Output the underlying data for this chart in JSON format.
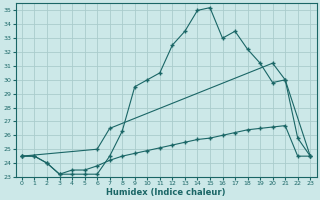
{
  "xlabel": "Humidex (Indice chaleur)",
  "background_color": "#cce8e8",
  "grid_color": "#aacccc",
  "line_color": "#1a6666",
  "xlim": [
    -0.5,
    23.5
  ],
  "ylim": [
    23,
    35.5
  ],
  "xticks": [
    0,
    1,
    2,
    3,
    4,
    5,
    6,
    7,
    8,
    9,
    10,
    11,
    12,
    13,
    14,
    15,
    16,
    17,
    18,
    19,
    20,
    21,
    22,
    23
  ],
  "yticks": [
    23,
    24,
    25,
    26,
    27,
    28,
    29,
    30,
    31,
    32,
    33,
    34,
    35
  ],
  "series1_x": [
    0,
    1,
    2,
    3,
    4,
    5,
    6,
    7,
    8,
    9,
    10,
    11,
    12,
    13,
    14,
    15,
    16,
    17,
    18,
    19,
    20,
    21,
    22,
    23
  ],
  "series1_y": [
    24.5,
    24.5,
    24.0,
    23.2,
    23.2,
    23.2,
    23.2,
    24.5,
    26.3,
    29.5,
    30.0,
    30.5,
    32.5,
    33.5,
    35.0,
    35.2,
    33.0,
    33.5,
    32.2,
    31.2,
    29.8,
    30.0,
    25.8,
    24.5
  ],
  "series2_x": [
    0,
    6,
    7,
    20,
    21,
    23
  ],
  "series2_y": [
    24.5,
    25.0,
    26.5,
    31.2,
    30.0,
    24.5
  ],
  "series3_x": [
    0,
    1,
    2,
    3,
    4,
    5,
    6,
    7,
    8,
    9,
    10,
    11,
    12,
    13,
    14,
    15,
    16,
    17,
    18,
    19,
    20,
    21,
    22,
    23
  ],
  "series3_y": [
    24.5,
    24.5,
    24.0,
    23.2,
    23.5,
    23.5,
    23.8,
    24.2,
    24.5,
    24.7,
    24.9,
    25.1,
    25.3,
    25.5,
    25.7,
    25.8,
    26.0,
    26.2,
    26.4,
    26.5,
    26.6,
    26.7,
    24.5,
    24.5
  ]
}
